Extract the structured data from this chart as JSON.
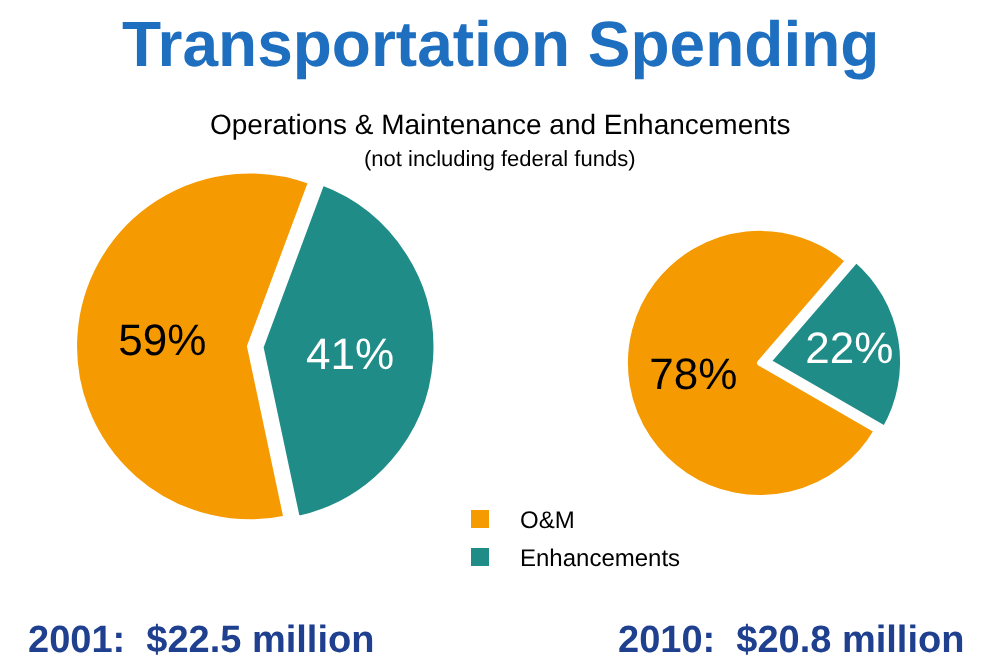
{
  "chart_data": [
    {
      "type": "pie",
      "title": "Transportation Spending",
      "subtitle": "Operations & Maintenance and Enhancements",
      "annotations": [
        "(not including federal funds)"
      ],
      "xlabel": "2001:  $22.5 million",
      "categories": [
        "O&M",
        "Enhancements"
      ],
      "values": [
        59,
        41
      ],
      "colors": [
        "#f59a00",
        "#1f8c87"
      ],
      "value_labels": [
        "59%",
        "41%"
      ],
      "legend": "bottom right"
    },
    {
      "type": "pie",
      "xlabel": "2010:  $20.8 million",
      "categories": [
        null,
        null
      ],
      "values": [
        78,
        22
      ],
      "colors": [
        "#f59a00",
        "#1f8c87"
      ],
      "value_labels": [
        "78%",
        "22%"
      ]
    }
  ]
}
